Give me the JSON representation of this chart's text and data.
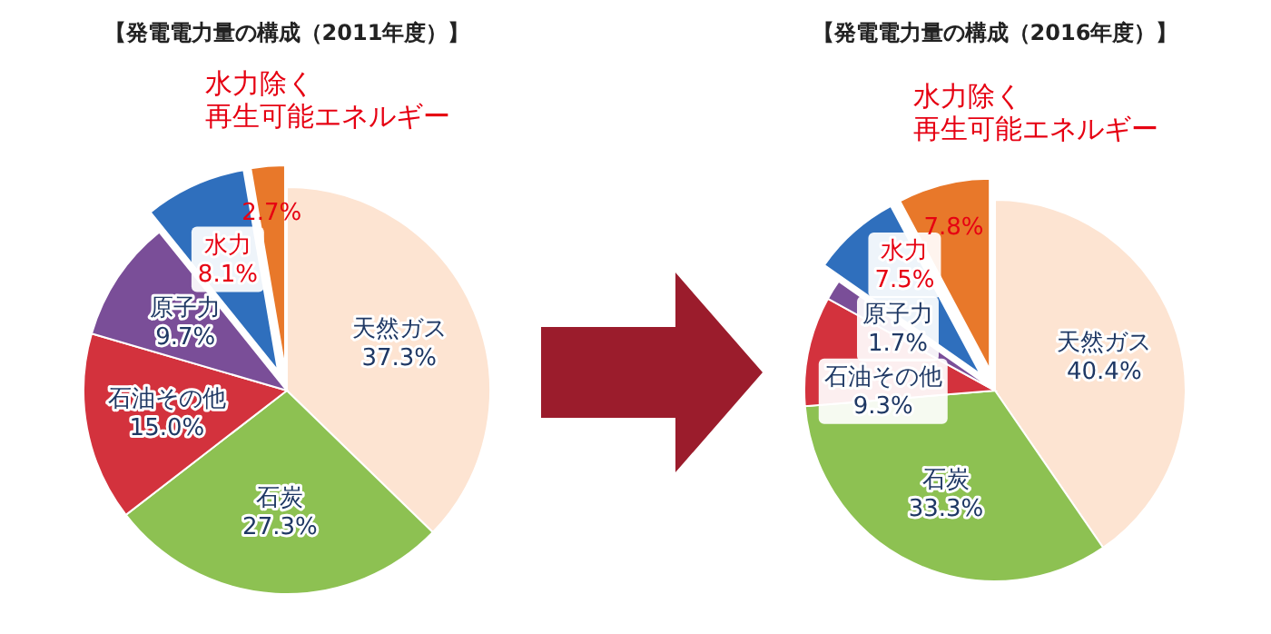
{
  "chart_data": [
    {
      "type": "pie",
      "title": "【発電電力量の構成（2011年度）】",
      "categories": [
        "天然ガス",
        "石炭",
        "石油その他",
        "原子力",
        "水力",
        "水力除く再生可能エネルギー"
      ],
      "values": [
        37.3,
        27.3,
        15.0,
        9.7,
        8.1,
        2.7
      ],
      "colors": [
        "#fde4d2",
        "#8dc152",
        "#d3323d",
        "#7a4e98",
        "#2f6fbd",
        "#e8782a"
      ],
      "value_labels": [
        "37.3%",
        "27.3%",
        "15.0%",
        "9.7%",
        "8.1%",
        "2.7%"
      ]
    },
    {
      "type": "pie",
      "title": "【発電電力量の構成（2016年度）】",
      "categories": [
        "天然ガス",
        "石炭",
        "石油その他",
        "原子力",
        "水力",
        "水力除く再生可能エネルギー"
      ],
      "values": [
        40.4,
        33.3,
        9.3,
        1.7,
        7.5,
        7.8
      ],
      "colors": [
        "#fde4d2",
        "#8dc152",
        "#d3323d",
        "#7a4e98",
        "#2f6fbd",
        "#e8782a"
      ],
      "value_labels": [
        "40.4%",
        "33.3%",
        "9.3%",
        "1.7%",
        "7.5%",
        "7.8%"
      ]
    }
  ]
}
